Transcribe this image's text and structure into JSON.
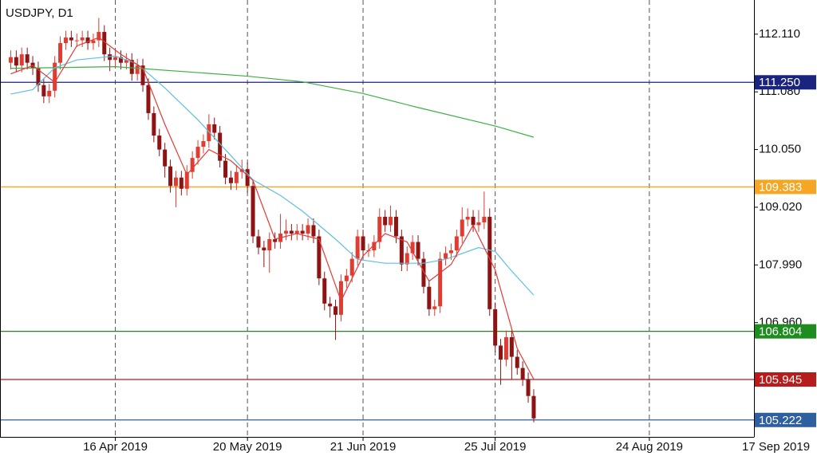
{
  "chart_data": {
    "type": "candlestick",
    "title": "USDJPY, D1",
    "categories": [
      null,
      null,
      null,
      null,
      null,
      null,
      null,
      null,
      null,
      null,
      null,
      null,
      null,
      null,
      null,
      null,
      null,
      null,
      null,
      "16 Apr 2019",
      null,
      null,
      null,
      null,
      null,
      null,
      null,
      null,
      null,
      null,
      null,
      null,
      null,
      null,
      null,
      null,
      null,
      null,
      null,
      null,
      null,
      null,
      null,
      "20 May 2019",
      null,
      null,
      null,
      null,
      null,
      null,
      null,
      null,
      null,
      null,
      null,
      null,
      null,
      null,
      null,
      null,
      null,
      null,
      null,
      null,
      "21 Jun 2019",
      null,
      null,
      null,
      null,
      null,
      null,
      null,
      null,
      null,
      null,
      null,
      null,
      null,
      null,
      null,
      null,
      null,
      null,
      null,
      null,
      null,
      null,
      null,
      "25 Jul 2019",
      null,
      null,
      null,
      null,
      null,
      null,
      null,
      null,
      null,
      null,
      null,
      null,
      null,
      null,
      null,
      null,
      null,
      null,
      null,
      null,
      null,
      null,
      null,
      null,
      null,
      null,
      null,
      "24 Aug 2019",
      null,
      null,
      null,
      null,
      null,
      null,
      null,
      null,
      null,
      null,
      null,
      null,
      null,
      null,
      null,
      null,
      null,
      null,
      null,
      null,
      null,
      null,
      "17 Sep 2019"
    ],
    "open": [
      111.6,
      111.7,
      111.55,
      111.75,
      111.6,
      111.5,
      111.2,
      111.0,
      111.1,
      111.6,
      111.95,
      112.05,
      112.0,
      112.0,
      112.05,
      111.95,
      112.0,
      112.15,
      111.75,
      111.65,
      111.7,
      111.6,
      111.65,
      111.4,
      111.55,
      111.2,
      110.7,
      110.3,
      110.05,
      109.75,
      109.4,
      109.55,
      109.35,
      109.65,
      109.9,
      110.1,
      110.2,
      110.5,
      110.35,
      109.85,
      109.55,
      109.45,
      109.65,
      109.7,
      109.4,
      108.5,
      108.3,
      108.25,
      108.45,
      108.4,
      108.55,
      108.6,
      108.55,
      108.6,
      108.55,
      108.7,
      108.5,
      107.75,
      107.3,
      107.25,
      107.1,
      107.7,
      107.8,
      108.1,
      108.5,
      108.25,
      108.25,
      108.4,
      108.85,
      108.7,
      108.85,
      108.5,
      108.0,
      108.2,
      108.4,
      108.1,
      107.6,
      107.2,
      107.25,
      108.1,
      108.2,
      108.25,
      108.5,
      108.8,
      108.85,
      108.7,
      108.75,
      108.85,
      107.2,
      106.55,
      106.3,
      106.7,
      106.35,
      106.15,
      105.95,
      105.65,
      null,
      null,
      null,
      null,
      null,
      null,
      null,
      null,
      null,
      null,
      null,
      null,
      null,
      null,
      null,
      null,
      null,
      null,
      null,
      null,
      null,
      null,
      null,
      null,
      null,
      null,
      null,
      null,
      null,
      null,
      null,
      null,
      null,
      null,
      null,
      null,
      null,
      null,
      null,
      null,
      null,
      null,
      null,
      null
    ],
    "high": [
      111.82,
      111.82,
      111.87,
      111.87,
      111.72,
      111.62,
      111.32,
      111.22,
      111.72,
      112.07,
      112.17,
      112.17,
      112.12,
      112.17,
      112.17,
      112.12,
      112.4,
      112.27,
      111.87,
      111.82,
      111.82,
      111.77,
      111.77,
      111.67,
      111.67,
      111.32,
      110.82,
      110.42,
      110.17,
      109.87,
      109.67,
      109.67,
      109.77,
      110.02,
      110.22,
      110.32,
      110.68,
      110.62,
      110.47,
      109.97,
      109.67,
      109.77,
      109.87,
      109.82,
      109.52,
      108.62,
      108.42,
      108.57,
      108.57,
      108.9,
      108.8,
      108.72,
      108.72,
      108.72,
      108.82,
      108.82,
      108.62,
      107.87,
      107.42,
      107.37,
      107.82,
      107.92,
      108.22,
      108.62,
      108.62,
      108.37,
      108.52,
      109.0,
      108.97,
      109.05,
      108.97,
      108.62,
      108.32,
      108.52,
      108.52,
      108.22,
      107.72,
      107.37,
      108.22,
      108.32,
      108.37,
      108.62,
      109.02,
      109.0,
      108.97,
      108.97,
      109.3,
      109.0,
      107.32,
      106.67,
      106.82,
      106.82,
      106.47,
      106.27,
      106.07,
      105.77,
      null,
      null,
      null,
      null,
      null,
      null,
      null,
      null,
      null,
      null,
      null,
      null,
      null,
      null,
      null,
      null,
      null,
      null,
      null,
      null,
      null,
      null,
      null,
      null,
      null,
      null,
      null,
      null,
      null,
      null,
      null,
      null,
      null,
      null,
      null,
      null,
      null,
      null,
      null,
      null,
      null,
      null,
      null,
      null
    ],
    "low": [
      111.48,
      111.43,
      111.43,
      111.48,
      111.38,
      111.08,
      110.88,
      110.88,
      110.98,
      111.48,
      111.83,
      111.88,
      111.88,
      111.88,
      111.83,
      111.83,
      111.88,
      111.63,
      111.45,
      111.53,
      111.48,
      111.48,
      111.28,
      111.28,
      111.08,
      110.58,
      110.18,
      109.93,
      109.55,
      109.28,
      109.02,
      109.23,
      109.23,
      109.53,
      109.78,
      109.98,
      110.08,
      110.23,
      109.73,
      109.43,
      109.33,
      109.33,
      109.53,
      109.28,
      108.38,
      108.18,
      107.95,
      107.85,
      108.28,
      108.28,
      108.43,
      108.43,
      108.43,
      108.43,
      108.43,
      108.38,
      107.63,
      107.18,
      107.05,
      106.65,
      106.98,
      107.58,
      107.68,
      107.98,
      108.13,
      108.13,
      108.13,
      108.28,
      108.58,
      108.58,
      108.38,
      107.88,
      107.88,
      108.08,
      107.98,
      107.48,
      107.08,
      107.08,
      107.13,
      107.98,
      108.08,
      108.13,
      108.38,
      108.68,
      108.58,
      108.58,
      108.63,
      107.08,
      106.43,
      105.85,
      106.18,
      105.95,
      106.03,
      105.83,
      105.53,
      105.18,
      null,
      null,
      null,
      null,
      null,
      null,
      null,
      null,
      null,
      null,
      null,
      null,
      null,
      null,
      null,
      null,
      null,
      null,
      null,
      null,
      null,
      null,
      null,
      null,
      null,
      null,
      null,
      null,
      null,
      null,
      null,
      null,
      null,
      null,
      null,
      null,
      null,
      null,
      null,
      null,
      null,
      null,
      null,
      null
    ],
    "close": [
      111.7,
      111.55,
      111.75,
      111.6,
      111.5,
      111.2,
      111.0,
      111.1,
      111.6,
      111.95,
      112.05,
      112.0,
      112.0,
      112.05,
      111.95,
      112.0,
      112.15,
      111.75,
      111.65,
      111.7,
      111.6,
      111.65,
      111.4,
      111.55,
      111.2,
      110.7,
      110.3,
      110.05,
      109.75,
      109.4,
      109.55,
      109.35,
      109.65,
      109.9,
      110.1,
      110.2,
      110.5,
      110.35,
      109.85,
      109.55,
      109.45,
      109.65,
      109.7,
      109.4,
      108.5,
      108.3,
      108.25,
      108.45,
      108.4,
      108.55,
      108.6,
      108.55,
      108.6,
      108.55,
      108.7,
      108.5,
      107.75,
      107.3,
      107.25,
      107.1,
      107.7,
      107.8,
      108.1,
      108.5,
      108.25,
      108.25,
      108.4,
      108.85,
      108.7,
      108.85,
      108.5,
      108.0,
      108.2,
      108.4,
      108.1,
      107.6,
      107.2,
      107.25,
      108.1,
      108.2,
      108.25,
      108.5,
      108.8,
      108.85,
      108.7,
      108.75,
      108.85,
      107.2,
      106.55,
      106.3,
      106.7,
      106.35,
      106.15,
      105.95,
      105.65,
      105.25,
      null,
      null,
      null,
      null,
      null,
      null,
      null,
      null,
      null,
      null,
      null,
      null,
      null,
      null,
      null,
      null,
      null,
      null,
      null,
      null,
      null,
      null,
      null,
      null,
      null,
      null,
      null,
      null,
      null,
      null,
      null,
      null,
      null,
      null,
      null,
      null,
      null,
      null,
      null,
      null,
      null,
      null,
      null,
      null
    ],
    "up_color": "#e03c31",
    "down_color": "#8e1414",
    "lines": [
      {
        "color": "#3cb043",
        "x": [
          0,
          19,
          43,
          53,
          64,
          74,
          88,
          95
        ],
        "values": [
          111.5,
          111.53,
          111.36,
          111.26,
          111.05,
          110.8,
          110.47,
          110.27
        ]
      },
      {
        "color": "#5bc0de",
        "x": [
          0,
          4,
          8,
          12,
          19,
          23,
          28,
          34,
          40,
          44,
          49,
          53,
          59,
          63,
          68,
          75,
          79,
          85,
          88,
          91,
          95
        ],
        "values": [
          111.04,
          111.12,
          111.51,
          111.65,
          111.72,
          111.58,
          111.15,
          110.58,
          109.94,
          109.51,
          109.23,
          108.95,
          108.45,
          108.09,
          108.02,
          108.02,
          108.09,
          108.3,
          108.23,
          107.88,
          107.45
        ]
      },
      {
        "color": "#e53935",
        "x": [
          0,
          4,
          8,
          12,
          16,
          20,
          24,
          28,
          32,
          36,
          40,
          44,
          48,
          52,
          56,
          60,
          64,
          68,
          72,
          76,
          80,
          84,
          88,
          92,
          95
        ],
        "values": [
          111.4,
          111.55,
          111.25,
          111.9,
          112.05,
          111.75,
          111.5,
          110.5,
          109.6,
          110.05,
          109.85,
          109.5,
          108.45,
          108.55,
          108.45,
          107.35,
          108.15,
          108.55,
          108.4,
          107.7,
          108.0,
          108.7,
          107.9,
          106.5,
          105.95
        ]
      }
    ],
    "levels": [
      {
        "value": 111.25,
        "label": "111.250",
        "color": "#1a237e"
      },
      {
        "value": 109.383,
        "label": "109.383",
        "color": "#f5a623"
      },
      {
        "value": 106.804,
        "label": "106.804",
        "color": "#1e8c1e"
      },
      {
        "value": 105.945,
        "label": "105.945",
        "color": "#b71c1c"
      },
      {
        "value": 105.222,
        "label": "105.222",
        "color": "#2e5f9e"
      }
    ],
    "ylim": [
      104.92,
      112.72
    ],
    "yticks": [
      {
        "value": 112.11,
        "label": "112.110"
      },
      {
        "value": 111.08,
        "label": "111.080"
      },
      {
        "value": 110.05,
        "label": "110.050"
      },
      {
        "value": 109.02,
        "label": "109.020"
      },
      {
        "value": 107.99,
        "label": "107.990"
      },
      {
        "value": 106.96,
        "label": "106.960"
      }
    ],
    "grid": true
  }
}
